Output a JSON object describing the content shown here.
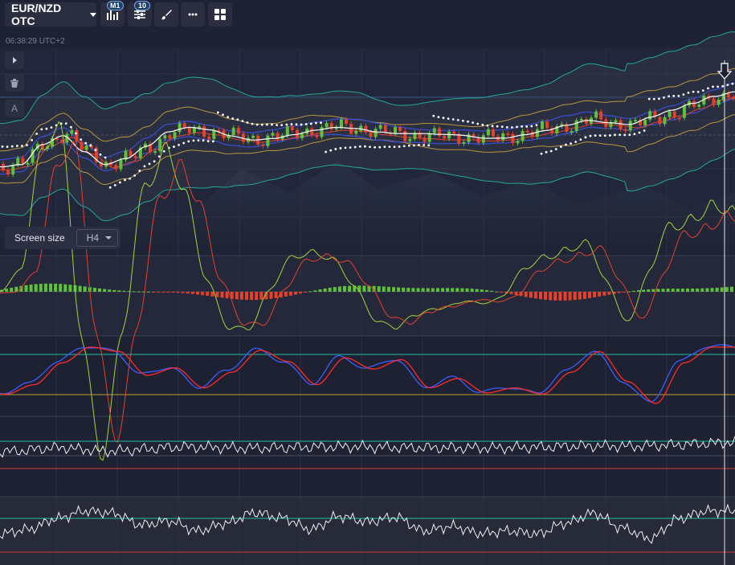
{
  "toolbar": {
    "pair": "EUR/NZD OTC",
    "timeframe_badge": "M1",
    "indicators_badge": "10",
    "buttons": [
      "chart-type",
      "indicators",
      "drawing",
      "more",
      "layouts"
    ]
  },
  "clock": "06:38:29 UTC+2",
  "screen_size": {
    "label": "Screen size",
    "value": "H4"
  },
  "colors": {
    "background": "#1f2232",
    "panel": "#2a2e40",
    "bull": "#5fc03a",
    "bear": "#e5412b",
    "stoch_k": "#3b5cff",
    "stoch_d": "#ff2a2a",
    "band_outer": "#1fbfa5",
    "band_mid": "#b9963c",
    "ma_blue": "#3a4fd6",
    "level_line": "#1fbfa5",
    "level_mid": "#b6a032",
    "level_low": "#d43a3a"
  },
  "icons": [
    "chart-bars-icon",
    "sliders-icon",
    "brush-icon",
    "dots-icon",
    "grid-icon",
    "play-icon",
    "trash-icon",
    "text-a-icon",
    "down-arrow-icon"
  ],
  "chart_data": {
    "type": "line",
    "title": "",
    "price_trend": [
      0.35,
      0.38,
      0.55,
      0.62,
      0.48,
      0.37,
      0.42,
      0.52,
      0.63,
      0.66,
      0.64,
      0.6,
      0.58,
      0.6,
      0.63,
      0.66,
      0.68,
      0.67,
      0.64,
      0.62,
      0.61,
      0.6,
      0.6,
      0.59,
      0.6,
      0.63,
      0.66,
      0.7,
      0.74,
      0.72,
      0.7,
      0.75,
      0.8,
      0.86,
      0.93,
      0.98
    ],
    "stochastic": [
      0.2,
      0.35,
      0.7,
      0.95,
      0.88,
      0.5,
      0.62,
      0.3,
      0.55,
      0.9,
      0.72,
      0.35,
      0.78,
      0.6,
      0.75,
      0.3,
      0.45,
      0.22,
      0.3,
      0.2,
      0.55,
      0.88,
      0.4,
      0.05,
      0.7,
      0.95,
      0.95
    ],
    "oscillator_levels": {
      "upper": "teal",
      "middle": "olive",
      "lower": "red"
    }
  }
}
